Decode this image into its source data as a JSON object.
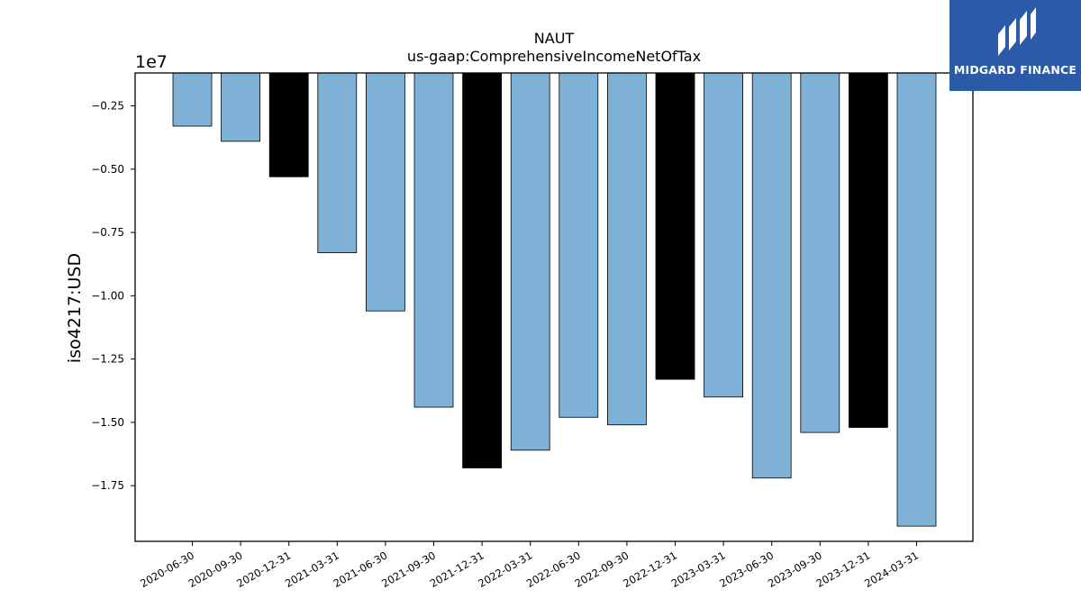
{
  "brand": {
    "name": "MIDGARD FINANCE",
    "icon": "midgard-logo-icon",
    "colors": {
      "background": "#2a5aa8",
      "foreground": "#ffffff"
    }
  },
  "chart_data": {
    "type": "bar",
    "title": "NAUT",
    "subtitle": "us-gaap:ComprehensiveIncomeNetOfTax",
    "xlabel": "",
    "ylabel": "iso4217:USD",
    "y_offset_label": "1e7",
    "y_scale": 10000000,
    "ylim": [
      -19700000,
      -1200000
    ],
    "yticks": [
      -2500000,
      -5000000,
      -7500000,
      -10000000,
      -12500000,
      -15000000,
      -17500000
    ],
    "ytick_labels": [
      "−0.25",
      "−0.50",
      "−0.75",
      "−1.00",
      "−1.25",
      "−1.50",
      "−1.75"
    ],
    "categories": [
      "2020-06-30",
      "2020-09-30",
      "2020-12-31",
      "2021-03-31",
      "2021-06-30",
      "2021-09-30",
      "2021-12-31",
      "2022-03-31",
      "2022-06-30",
      "2022-09-30",
      "2022-12-31",
      "2023-03-31",
      "2023-06-30",
      "2023-09-30",
      "2023-12-31",
      "2024-03-31"
    ],
    "values": [
      -3300000,
      -3900000,
      -5300000,
      -8300000,
      -10600000,
      -14400000,
      -16800000,
      -16100000,
      -14800000,
      -15100000,
      -13300000,
      -14000000,
      -17200000,
      -15400000,
      -15200000,
      -19100000
    ],
    "highlight": [
      false,
      false,
      true,
      false,
      false,
      false,
      true,
      false,
      false,
      false,
      true,
      false,
      false,
      false,
      true,
      false
    ],
    "colors": {
      "bar": "#7fb0d5",
      "highlight": "#000000",
      "edge": "#000000"
    },
    "grid": false,
    "legend": "none"
  }
}
